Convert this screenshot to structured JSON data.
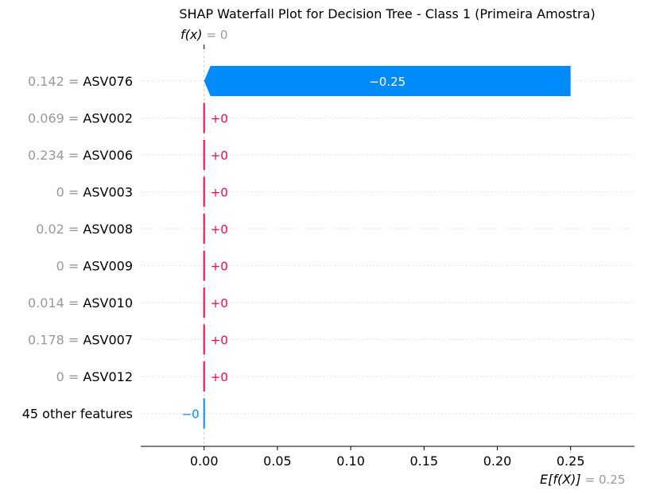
{
  "chart_data": {
    "type": "bar",
    "title": "SHAP Waterfall Plot for Decision Tree - Class 1 (Primeira Amostra)",
    "fx": {
      "label": "f(x)",
      "value_text": "= 0",
      "value": 0
    },
    "base": {
      "label": "E[f(X)]",
      "value_text": "= 0.25",
      "value": 0.25
    },
    "xlim": [
      -0.043,
      0.29
    ],
    "xticks": [
      0.0,
      0.05,
      0.1,
      0.15,
      0.2,
      0.25
    ],
    "xtick_labels": [
      "0.00",
      "0.05",
      "0.10",
      "0.15",
      "0.20",
      "0.25"
    ],
    "features": [
      {
        "value": "0.142 =",
        "name": "ASV076",
        "shap": -0.25,
        "label": "−0.25"
      },
      {
        "value": "0.069 =",
        "name": "ASV002",
        "shap": 0.0,
        "label": "+0",
        "sign": 1
      },
      {
        "value": "0.234 =",
        "name": "ASV006",
        "shap": 0.0,
        "label": "+0",
        "sign": 1
      },
      {
        "value": "0 =",
        "name": "ASV003",
        "shap": 0.0,
        "label": "+0",
        "sign": 1
      },
      {
        "value": "0.02 =",
        "name": "ASV008",
        "shap": 0.0,
        "label": "+0",
        "sign": 1
      },
      {
        "value": "0 =",
        "name": "ASV009",
        "shap": 0.0,
        "label": "+0",
        "sign": 1
      },
      {
        "value": "0.014 =",
        "name": "ASV010",
        "shap": 0.0,
        "label": "+0",
        "sign": 1
      },
      {
        "value": "0.178 =",
        "name": "ASV007",
        "shap": 0.0,
        "label": "+0",
        "sign": 1
      },
      {
        "value": "0 =",
        "name": "ASV012",
        "shap": 0.0,
        "label": "+0",
        "sign": 1
      },
      {
        "value": "",
        "name": "45 other features",
        "shap": 0.0,
        "label": "−0",
        "sign": -1
      }
    ],
    "colors": {
      "positive": "#ff0051",
      "negative": "#008bfb",
      "muted": "#999999"
    }
  }
}
